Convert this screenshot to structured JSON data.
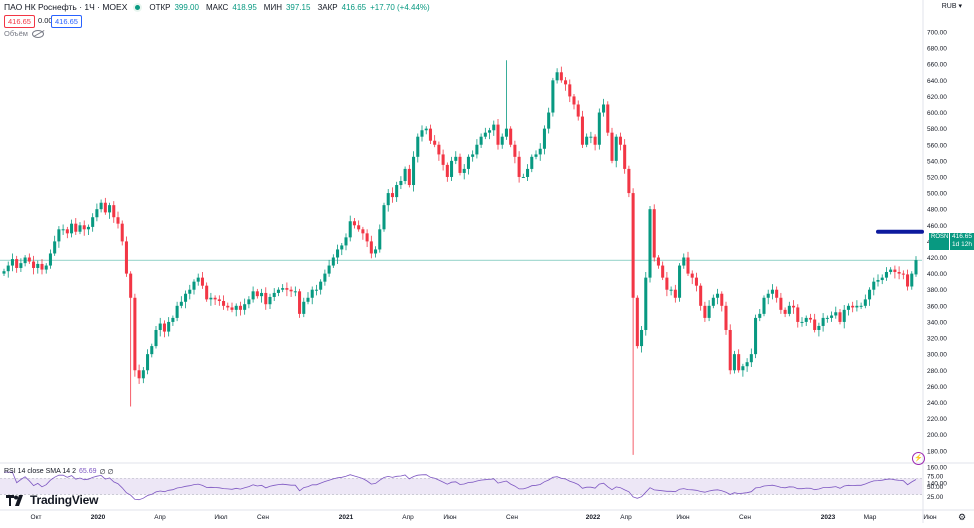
{
  "header": {
    "symbol_title": "ПАО НК Роснефть · 1Ч · MOEX",
    "ohlc": [
      {
        "key": "ОТКР",
        "value": "399.00"
      },
      {
        "key": "МАКС",
        "value": "418.95"
      },
      {
        "key": "МИН",
        "value": "397.15"
      },
      {
        "key": "ЗАКР",
        "value": "416.65"
      }
    ],
    "change": "+17.70 (+4.44%)",
    "sell_price": "416.65",
    "spread": "0.00",
    "buy_price": "416.65",
    "volume_label": "Объём",
    "currency": "RUB",
    "currency_caret": "▾"
  },
  "price_badge": {
    "ticker": "ROSN",
    "price": "416.65",
    "countdown": "1d 12h"
  },
  "rsi": {
    "label": "RSI 14 close SMA 14 2",
    "value": "65.69",
    "extra": "∅ ∅"
  },
  "brand": {
    "name": "TradingView"
  },
  "icons": {
    "eye": "eye-hidden-icon",
    "flash": "lightning-icon",
    "settings": "gear-icon",
    "logo": "tradingview-logo-icon"
  },
  "colors": {
    "up": "#089981",
    "down": "#f23645",
    "rsi_line": "#7e57c2",
    "rsi_band": "#ede7f6",
    "marker": "#0d1a9e",
    "price_line": "#089981"
  },
  "chart_data": {
    "type": "candlestick",
    "y_axis": {
      "min": 140,
      "max": 700,
      "ticks": [
        "700.00",
        "680.00",
        "660.00",
        "640.00",
        "620.00",
        "600.00",
        "580.00",
        "560.00",
        "540.00",
        "520.00",
        "500.00",
        "480.00",
        "460.00",
        "440.00",
        "420.00",
        "400.00",
        "380.00",
        "360.00",
        "340.00",
        "320.00",
        "300.00",
        "280.00",
        "260.00",
        "240.00",
        "220.00",
        "200.00",
        "180.00",
        "160.00",
        "140.00"
      ]
    },
    "x_axis": {
      "labels": [
        "Окт",
        "2020",
        "Апр",
        "Июл",
        "Сен",
        "2021",
        "Апр",
        "Июн",
        "Сен",
        "2022",
        "Апр",
        "Июн",
        "Сен",
        "2023",
        "Мар",
        "Июн"
      ],
      "bold": [
        "2020",
        "2021",
        "2022",
        "2023"
      ]
    },
    "rsi_axis": {
      "ticks": [
        "75.00",
        "50.00",
        "25.00"
      ],
      "upper": 70,
      "lower": 30
    },
    "current_price": 416.65,
    "marker_level": 452,
    "closes": [
      403,
      410,
      418,
      407,
      413,
      420,
      415,
      407,
      412,
      405,
      410,
      425,
      440,
      455,
      455,
      450,
      462,
      452,
      460,
      455,
      458,
      470,
      480,
      488,
      476,
      485,
      470,
      462,
      440,
      400,
      370,
      280,
      270,
      280,
      300,
      310,
      330,
      338,
      328,
      340,
      345,
      360,
      365,
      375,
      380,
      390,
      395,
      385,
      368,
      370,
      368,
      366,
      360,
      358,
      355,
      360,
      355,
      362,
      368,
      378,
      372,
      376,
      362,
      371,
      376,
      380,
      382,
      380,
      378,
      378,
      350,
      365,
      370,
      380,
      380,
      390,
      400,
      410,
      420,
      430,
      435,
      445,
      465,
      460,
      455,
      450,
      440,
      425,
      430,
      455,
      485,
      500,
      495,
      510,
      515,
      530,
      510,
      545,
      570,
      578,
      580,
      565,
      560,
      548,
      535,
      520,
      540,
      545,
      525,
      530,
      545,
      548,
      560,
      570,
      575,
      578,
      585,
      560,
      570,
      580,
      560,
      545,
      520,
      520,
      530,
      545,
      548,
      555,
      580,
      600,
      640,
      650,
      640,
      635,
      620,
      610,
      595,
      560,
      570,
      570,
      560,
      600,
      610,
      575,
      540,
      570,
      560,
      530,
      500,
      370,
      310,
      330,
      395,
      480,
      420,
      410,
      395,
      380,
      380,
      370,
      410,
      420,
      400,
      395,
      385,
      360,
      345,
      360,
      370,
      375,
      360,
      330,
      280,
      300,
      280,
      285,
      290,
      300,
      345,
      350,
      370,
      375,
      380,
      370,
      355,
      350,
      360,
      358,
      340,
      340,
      345,
      343,
      330,
      335,
      345,
      345,
      348,
      352,
      340,
      355,
      360,
      358,
      360,
      360,
      368,
      380,
      390,
      392,
      395,
      402,
      405,
      402,
      400,
      399,
      384,
      400,
      416.65
    ],
    "opens": [
      400,
      403,
      410,
      418,
      407,
      413,
      420,
      415,
      407,
      412,
      405,
      410,
      425,
      440,
      455,
      455,
      450,
      462,
      452,
      460,
      455,
      458,
      470,
      480,
      488,
      476,
      485,
      470,
      462,
      440,
      400,
      370,
      280,
      270,
      280,
      300,
      310,
      330,
      338,
      328,
      340,
      345,
      360,
      365,
      375,
      380,
      390,
      395,
      385,
      368,
      370,
      368,
      366,
      360,
      358,
      355,
      360,
      355,
      362,
      368,
      378,
      372,
      376,
      362,
      371,
      376,
      380,
      382,
      380,
      378,
      378,
      350,
      365,
      370,
      380,
      380,
      390,
      400,
      410,
      420,
      430,
      435,
      445,
      465,
      460,
      455,
      450,
      440,
      425,
      430,
      455,
      485,
      500,
      495,
      510,
      515,
      530,
      510,
      545,
      570,
      578,
      580,
      565,
      560,
      548,
      535,
      520,
      540,
      545,
      525,
      530,
      545,
      548,
      560,
      570,
      575,
      578,
      585,
      560,
      570,
      580,
      560,
      545,
      520,
      520,
      530,
      545,
      548,
      555,
      580,
      600,
      640,
      650,
      640,
      635,
      620,
      610,
      595,
      560,
      570,
      570,
      560,
      600,
      610,
      575,
      540,
      570,
      560,
      530,
      500,
      370,
      310,
      330,
      395,
      480,
      420,
      410,
      395,
      380,
      380,
      370,
      410,
      420,
      400,
      395,
      385,
      360,
      345,
      360,
      370,
      375,
      360,
      330,
      280,
      300,
      280,
      285,
      290,
      300,
      345,
      350,
      370,
      375,
      380,
      370,
      355,
      350,
      360,
      358,
      340,
      340,
      345,
      343,
      330,
      335,
      345,
      345,
      348,
      352,
      340,
      355,
      360,
      358,
      360,
      360,
      368,
      380,
      390,
      392,
      395,
      402,
      405,
      402,
      400,
      399,
      384,
      399
    ],
    "spikes": [
      {
        "index": 30,
        "low": 235
      },
      {
        "index": 149,
        "low": 175
      },
      {
        "index": 119,
        "high": 665
      },
      {
        "index": 123,
        "low": 520
      }
    ]
  }
}
